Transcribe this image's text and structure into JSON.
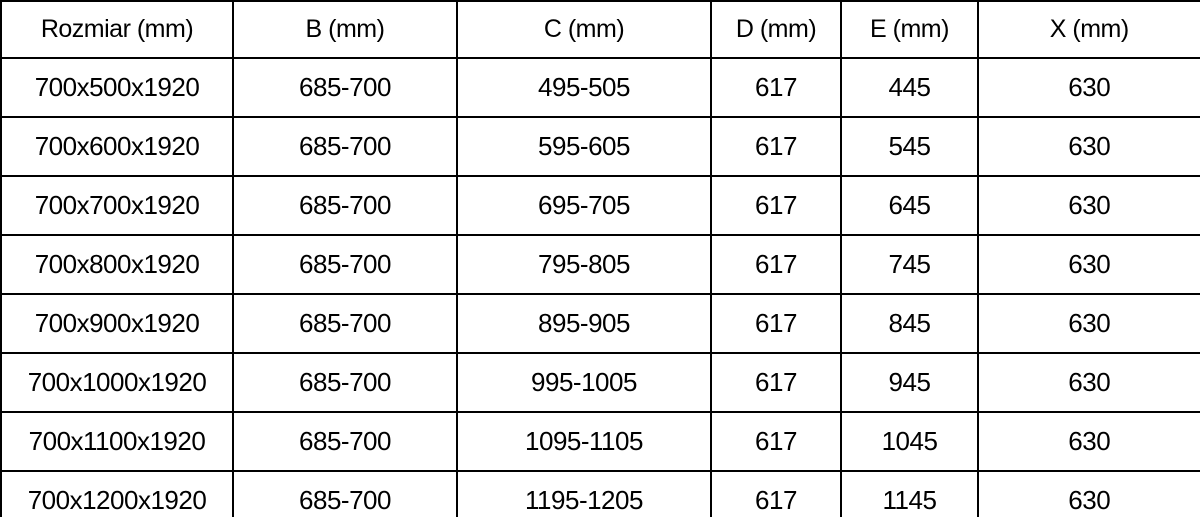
{
  "table": {
    "columns": [
      "Rozmiar (mm)",
      "B (mm)",
      "C (mm)",
      "D (mm)",
      "E (mm)",
      "X (mm)"
    ],
    "rows": [
      [
        "700x500x1920",
        "685-700",
        "495-505",
        "617",
        "445",
        "630"
      ],
      [
        "700x600x1920",
        "685-700",
        "595-605",
        "617",
        "545",
        "630"
      ],
      [
        "700x700x1920",
        "685-700",
        "695-705",
        "617",
        "645",
        "630"
      ],
      [
        "700x800x1920",
        "685-700",
        "795-805",
        "617",
        "745",
        "630"
      ],
      [
        "700x900x1920",
        "685-700",
        "895-905",
        "617",
        "845",
        "630"
      ],
      [
        "700x1000x1920",
        "685-700",
        "995-1005",
        "617",
        "945",
        "630"
      ],
      [
        "700x1100x1920",
        "685-700",
        "1095-1105",
        "617",
        "1045",
        "630"
      ],
      [
        "700x1200x1920",
        "685-700",
        "1195-1205",
        "617",
        "1145",
        "630"
      ]
    ]
  },
  "colors": {
    "border": "#000000",
    "text": "#000000",
    "background": "#ffffff"
  }
}
